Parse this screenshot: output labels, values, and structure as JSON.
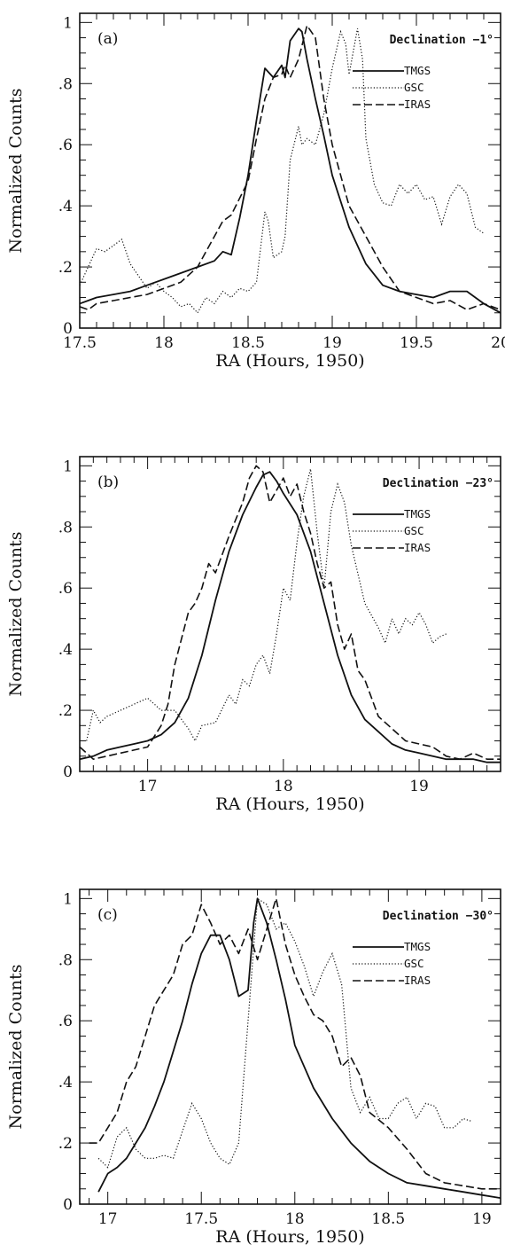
{
  "chart_data": [
    {
      "type": "line",
      "panel_label": "(a)",
      "annotation": "Declination −1°",
      "xlabel": "RA (Hours, 1950)",
      "ylabel": "Normalized Counts",
      "xlim": [
        17.5,
        20
      ],
      "ylim": [
        0,
        1.03
      ],
      "xticks": [
        17.5,
        18,
        18.5,
        19,
        19.5,
        20
      ],
      "xtick_labels": [
        "17.5",
        "18",
        "18.5",
        "19",
        "19.5",
        "20"
      ],
      "xminor": 0.1,
      "yticks": [
        0,
        0.2,
        0.4,
        0.6,
        0.8,
        1
      ],
      "ytick_labels": [
        "0",
        ".2",
        ".4",
        ".6",
        ".8",
        "1"
      ],
      "yminor": 0.05,
      "legend_position": "top-right",
      "series": [
        {
          "name": "TMGS",
          "style": "solid",
          "x": [
            17.5,
            17.55,
            17.6,
            17.7,
            17.8,
            17.9,
            18.0,
            18.1,
            18.2,
            18.3,
            18.35,
            18.4,
            18.45,
            18.5,
            18.55,
            18.6,
            18.65,
            18.7,
            18.72,
            18.75,
            18.8,
            18.82,
            18.85,
            18.9,
            18.95,
            19.0,
            19.1,
            19.2,
            19.3,
            19.4,
            19.5,
            19.6,
            19.7,
            19.8,
            19.9,
            20.0
          ],
          "y": [
            0.08,
            0.09,
            0.1,
            0.11,
            0.12,
            0.14,
            0.16,
            0.18,
            0.2,
            0.22,
            0.25,
            0.24,
            0.36,
            0.5,
            0.68,
            0.85,
            0.82,
            0.86,
            0.82,
            0.94,
            0.98,
            0.97,
            0.88,
            0.75,
            0.63,
            0.5,
            0.33,
            0.21,
            0.14,
            0.12,
            0.11,
            0.1,
            0.12,
            0.12,
            0.08,
            0.05
          ]
        },
        {
          "name": "GSC",
          "style": "dotted",
          "x": [
            17.5,
            17.55,
            17.6,
            17.65,
            17.7,
            17.75,
            17.8,
            17.85,
            17.9,
            17.95,
            18.0,
            18.05,
            18.1,
            18.15,
            18.2,
            18.25,
            18.3,
            18.35,
            18.4,
            18.45,
            18.5,
            18.55,
            18.6,
            18.62,
            18.65,
            18.7,
            18.72,
            18.75,
            18.8,
            18.82,
            18.85,
            18.9,
            18.95,
            19.0,
            19.05,
            19.08,
            19.1,
            19.15,
            19.18,
            19.2,
            19.25,
            19.3,
            19.35,
            19.4,
            19.45,
            19.5,
            19.55,
            19.6,
            19.65,
            19.7,
            19.75,
            19.8,
            19.85,
            19.9
          ],
          "y": [
            0.14,
            0.2,
            0.26,
            0.25,
            0.27,
            0.29,
            0.21,
            0.17,
            0.13,
            0.15,
            0.12,
            0.1,
            0.07,
            0.08,
            0.05,
            0.1,
            0.08,
            0.12,
            0.1,
            0.13,
            0.12,
            0.15,
            0.38,
            0.35,
            0.23,
            0.25,
            0.3,
            0.55,
            0.66,
            0.6,
            0.62,
            0.6,
            0.7,
            0.85,
            0.97,
            0.93,
            0.83,
            0.98,
            0.88,
            0.62,
            0.47,
            0.41,
            0.4,
            0.47,
            0.44,
            0.47,
            0.42,
            0.43,
            0.34,
            0.43,
            0.47,
            0.44,
            0.33,
            0.31
          ]
        },
        {
          "name": "IRAS",
          "style": "dashed",
          "x": [
            17.5,
            17.55,
            17.6,
            17.7,
            17.8,
            17.9,
            18.0,
            18.1,
            18.2,
            18.3,
            18.35,
            18.4,
            18.5,
            18.55,
            18.6,
            18.65,
            18.7,
            18.72,
            18.75,
            18.8,
            18.85,
            18.9,
            18.95,
            19.0,
            19.05,
            19.1,
            19.2,
            19.3,
            19.4,
            19.5,
            19.6,
            19.7,
            19.8,
            19.9,
            20.0
          ],
          "y": [
            0.07,
            0.06,
            0.08,
            0.09,
            0.1,
            0.11,
            0.13,
            0.15,
            0.2,
            0.3,
            0.35,
            0.37,
            0.48,
            0.62,
            0.75,
            0.82,
            0.83,
            0.86,
            0.82,
            0.88,
            0.99,
            0.95,
            0.75,
            0.6,
            0.5,
            0.4,
            0.3,
            0.2,
            0.12,
            0.1,
            0.08,
            0.09,
            0.06,
            0.08,
            0.06
          ]
        }
      ]
    },
    {
      "type": "line",
      "panel_label": "(b)",
      "annotation": "Declination −23°",
      "xlabel": "RA (Hours, 1950)",
      "ylabel": "Normalized Counts",
      "xlim": [
        16.5,
        19.6
      ],
      "ylim": [
        0,
        1.03
      ],
      "xticks": [
        17,
        18,
        19
      ],
      "xtick_labels": [
        "17",
        "18",
        "19"
      ],
      "xminor": 0.1,
      "yticks": [
        0,
        0.2,
        0.4,
        0.6,
        0.8,
        1
      ],
      "ytick_labels": [
        "0",
        ".2",
        ".4",
        ".6",
        ".8",
        "1"
      ],
      "yminor": 0.05,
      "legend_position": "top-right",
      "series": [
        {
          "name": "TMGS",
          "style": "solid",
          "x": [
            16.5,
            16.6,
            16.7,
            16.8,
            16.9,
            17.0,
            17.1,
            17.2,
            17.3,
            17.4,
            17.5,
            17.6,
            17.7,
            17.8,
            17.85,
            17.9,
            17.95,
            18.0,
            18.1,
            18.2,
            18.3,
            18.4,
            18.5,
            18.6,
            18.7,
            18.8,
            18.9,
            19.0,
            19.1,
            19.2,
            19.3,
            19.4,
            19.5,
            19.6
          ],
          "y": [
            0.04,
            0.05,
            0.07,
            0.08,
            0.09,
            0.1,
            0.12,
            0.16,
            0.24,
            0.38,
            0.56,
            0.72,
            0.84,
            0.93,
            0.97,
            0.98,
            0.95,
            0.91,
            0.84,
            0.72,
            0.55,
            0.38,
            0.25,
            0.17,
            0.13,
            0.09,
            0.07,
            0.06,
            0.05,
            0.04,
            0.04,
            0.04,
            0.03,
            0.03
          ]
        },
        {
          "name": "GSC",
          "style": "dotted",
          "x": [
            16.55,
            16.6,
            16.65,
            16.7,
            16.8,
            16.9,
            17.0,
            17.05,
            17.1,
            17.2,
            17.3,
            17.35,
            17.4,
            17.5,
            17.6,
            17.65,
            17.7,
            17.75,
            17.8,
            17.85,
            17.9,
            17.95,
            18.0,
            18.05,
            18.1,
            18.15,
            18.2,
            18.25,
            18.3,
            18.35,
            18.4,
            18.45,
            18.5,
            18.6,
            18.7,
            18.75,
            18.8,
            18.85,
            18.9,
            18.95,
            19.0,
            19.05,
            19.1,
            19.15,
            19.2
          ],
          "y": [
            0.1,
            0.2,
            0.16,
            0.18,
            0.2,
            0.22,
            0.24,
            0.22,
            0.2,
            0.2,
            0.14,
            0.1,
            0.15,
            0.16,
            0.25,
            0.22,
            0.3,
            0.28,
            0.35,
            0.38,
            0.32,
            0.45,
            0.6,
            0.56,
            0.75,
            0.9,
            0.99,
            0.78,
            0.6,
            0.85,
            0.94,
            0.88,
            0.74,
            0.55,
            0.47,
            0.42,
            0.5,
            0.45,
            0.5,
            0.48,
            0.52,
            0.48,
            0.42,
            0.44,
            0.45
          ]
        },
        {
          "name": "IRAS",
          "style": "dashed",
          "x": [
            16.5,
            16.55,
            16.6,
            16.7,
            16.8,
            16.9,
            17.0,
            17.1,
            17.15,
            17.2,
            17.3,
            17.35,
            17.4,
            17.45,
            17.5,
            17.6,
            17.7,
            17.75,
            17.8,
            17.85,
            17.9,
            17.95,
            18.0,
            18.05,
            18.1,
            18.15,
            18.2,
            18.25,
            18.3,
            18.35,
            18.4,
            18.45,
            18.5,
            18.55,
            18.6,
            18.7,
            18.8,
            18.9,
            19.0,
            19.1,
            19.2,
            19.3,
            19.4,
            19.5,
            19.6
          ],
          "y": [
            0.08,
            0.06,
            0.04,
            0.05,
            0.06,
            0.07,
            0.08,
            0.15,
            0.22,
            0.35,
            0.52,
            0.55,
            0.6,
            0.68,
            0.65,
            0.77,
            0.88,
            0.96,
            1.0,
            0.98,
            0.88,
            0.92,
            0.96,
            0.9,
            0.94,
            0.85,
            0.78,
            0.68,
            0.6,
            0.62,
            0.48,
            0.4,
            0.45,
            0.33,
            0.3,
            0.18,
            0.14,
            0.1,
            0.09,
            0.08,
            0.05,
            0.04,
            0.06,
            0.04,
            0.04
          ]
        }
      ]
    },
    {
      "type": "line",
      "panel_label": "(c)",
      "annotation": "Declination −30°",
      "xlabel": "RA (Hours, 1950)",
      "ylabel": "Normalized Counts",
      "xlim": [
        16.85,
        19.1
      ],
      "ylim": [
        0,
        1.03
      ],
      "xticks": [
        17,
        17.5,
        18,
        18.5,
        19
      ],
      "xtick_labels": [
        "17",
        "17.5",
        "18",
        "18.5",
        "19"
      ],
      "xminor": 0.1,
      "yticks": [
        0,
        0.2,
        0.4,
        0.6,
        0.8,
        1
      ],
      "ytick_labels": [
        "0",
        ".2",
        ".4",
        ".6",
        ".8",
        "1"
      ],
      "yminor": 0.05,
      "legend_position": "top-right",
      "series": [
        {
          "name": "TMGS",
          "style": "solid",
          "x": [
            16.95,
            17.0,
            17.05,
            17.1,
            17.15,
            17.2,
            17.25,
            17.3,
            17.35,
            17.4,
            17.45,
            17.5,
            17.55,
            17.6,
            17.65,
            17.7,
            17.75,
            17.78,
            17.8,
            17.85,
            17.9,
            17.95,
            18.0,
            18.1,
            18.2,
            18.3,
            18.4,
            18.5,
            18.6,
            18.7,
            18.8,
            18.9,
            19.0,
            19.1
          ],
          "y": [
            0.04,
            0.1,
            0.12,
            0.15,
            0.2,
            0.25,
            0.32,
            0.4,
            0.5,
            0.6,
            0.72,
            0.82,
            0.88,
            0.88,
            0.8,
            0.68,
            0.7,
            0.92,
            1.0,
            0.92,
            0.8,
            0.67,
            0.52,
            0.38,
            0.28,
            0.2,
            0.14,
            0.1,
            0.07,
            0.06,
            0.05,
            0.04,
            0.03,
            0.02
          ]
        },
        {
          "name": "GSC",
          "style": "dotted",
          "x": [
            16.95,
            17.0,
            17.05,
            17.1,
            17.15,
            17.2,
            17.25,
            17.3,
            17.35,
            17.4,
            17.45,
            17.5,
            17.55,
            17.6,
            17.65,
            17.7,
            17.75,
            17.8,
            17.85,
            17.9,
            17.95,
            18.0,
            18.05,
            18.1,
            18.15,
            18.2,
            18.25,
            18.3,
            18.35,
            18.4,
            18.45,
            18.5,
            18.55,
            18.6,
            18.65,
            18.7,
            18.75,
            18.8,
            18.85,
            18.9,
            18.95
          ],
          "y": [
            0.15,
            0.12,
            0.22,
            0.25,
            0.18,
            0.15,
            0.15,
            0.16,
            0.15,
            0.24,
            0.33,
            0.28,
            0.2,
            0.15,
            0.13,
            0.2,
            0.6,
            1.0,
            0.98,
            0.9,
            0.92,
            0.86,
            0.78,
            0.68,
            0.76,
            0.82,
            0.72,
            0.38,
            0.3,
            0.35,
            0.28,
            0.28,
            0.33,
            0.35,
            0.28,
            0.33,
            0.32,
            0.25,
            0.25,
            0.28,
            0.27
          ]
        },
        {
          "name": "IRAS",
          "style": "dashed",
          "x": [
            16.9,
            16.95,
            17.0,
            17.05,
            17.1,
            17.15,
            17.2,
            17.25,
            17.3,
            17.35,
            17.4,
            17.45,
            17.5,
            17.55,
            17.6,
            17.65,
            17.7,
            17.75,
            17.8,
            17.85,
            17.9,
            17.95,
            18.0,
            18.05,
            18.1,
            18.15,
            18.2,
            18.25,
            18.3,
            18.35,
            18.4,
            18.5,
            18.6,
            18.7,
            18.8,
            18.9,
            19.0,
            19.1
          ],
          "y": [
            0.2,
            0.2,
            0.25,
            0.3,
            0.4,
            0.45,
            0.55,
            0.65,
            0.7,
            0.75,
            0.85,
            0.88,
            0.98,
            0.92,
            0.85,
            0.88,
            0.82,
            0.9,
            0.8,
            0.9,
            1.0,
            0.85,
            0.75,
            0.68,
            0.62,
            0.6,
            0.55,
            0.45,
            0.48,
            0.42,
            0.3,
            0.25,
            0.18,
            0.1,
            0.07,
            0.06,
            0.05,
            0.05
          ]
        }
      ]
    }
  ]
}
